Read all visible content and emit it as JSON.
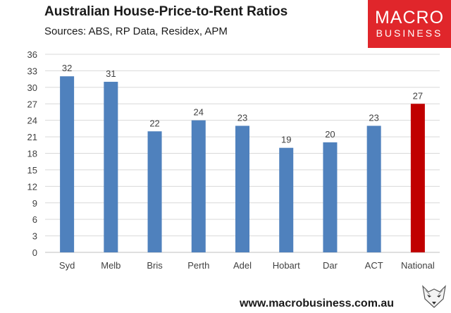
{
  "title": "Australian House-Price-to-Rent Ratios",
  "subtitle": "Sources: ABS, RP Data, Residex, APM",
  "logo": {
    "line1": "MACRO",
    "line2": "BUSINESS"
  },
  "footer": "www.macrobusiness.com.au",
  "colors": {
    "bar": "#4f81bd",
    "highlight": "#c00000",
    "logo_bg": "#e0262b",
    "grid": "#d9d9d9"
  },
  "chart_data": {
    "type": "bar",
    "title": "Australian House-Price-to-Rent Ratios",
    "subtitle": "Sources: ABS, RP Data, Residex, APM",
    "categories": [
      "Syd",
      "Melb",
      "Bris",
      "Perth",
      "Adel",
      "Hobart",
      "Dar",
      "ACT",
      "National"
    ],
    "values": [
      32,
      31,
      22,
      24,
      23,
      19,
      20,
      23,
      27
    ],
    "labels": [
      "32",
      "31",
      "22",
      "24",
      "23",
      "19",
      "20",
      "23",
      "27"
    ],
    "highlight": "National",
    "ylim": [
      0,
      36
    ],
    "yticks": [
      0,
      3,
      6,
      9,
      12,
      15,
      18,
      21,
      24,
      27,
      30,
      33,
      36
    ],
    "grid": true,
    "legend": "none"
  }
}
